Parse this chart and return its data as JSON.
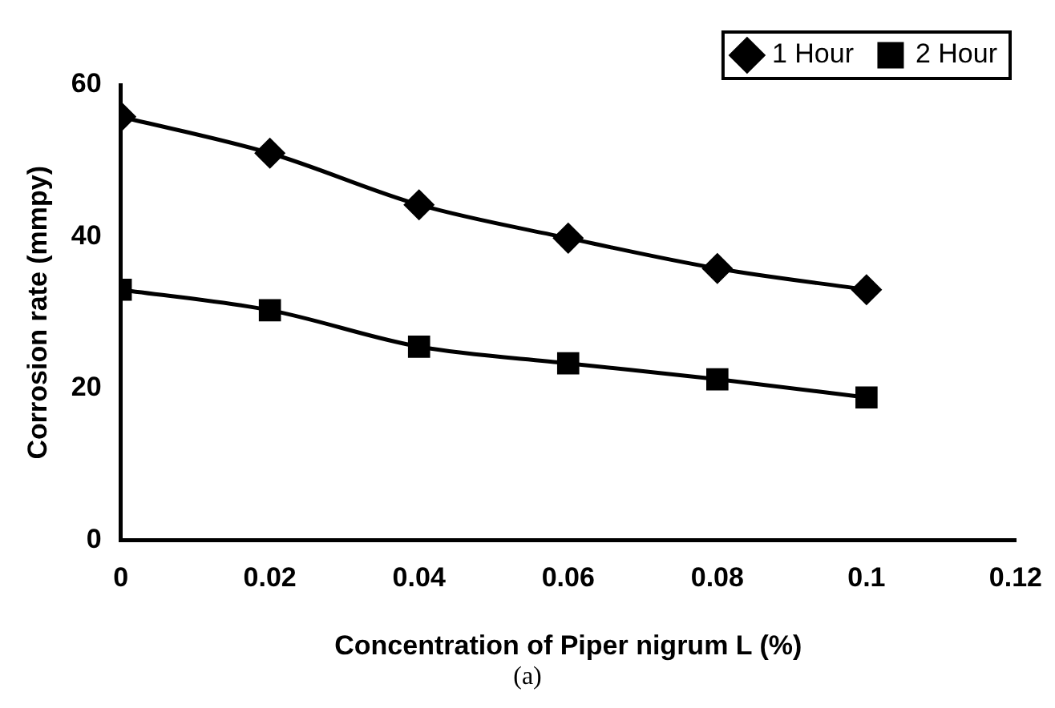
{
  "chart_data": {
    "type": "line",
    "xlabel": "Concentration of Piper nigrum L (%)",
    "ylabel": "Corrosion rate (mmpy)",
    "annotations": [
      "(a)"
    ],
    "x": [
      0,
      0.02,
      0.04,
      0.06,
      0.08,
      0.1
    ],
    "series": [
      {
        "name": "1 Hour",
        "color": "#000000",
        "marker": "diamond",
        "values": [
          55.8,
          51,
          44.2,
          39.8,
          35.8,
          33
        ]
      },
      {
        "name": "2 Hour",
        "color": "#000000",
        "marker": "square",
        "values": [
          33,
          30.3,
          25.5,
          23.3,
          21.2,
          18.8
        ]
      }
    ],
    "xlim": [
      0,
      0.12
    ],
    "xticks": [
      0,
      0.02,
      0.04,
      0.06,
      0.08,
      0.1,
      0.12
    ],
    "ylim": [
      0,
      60
    ],
    "yticks": [
      0,
      20,
      40,
      60
    ],
    "grid": false,
    "legend": "top right",
    "line_style": "solid"
  }
}
